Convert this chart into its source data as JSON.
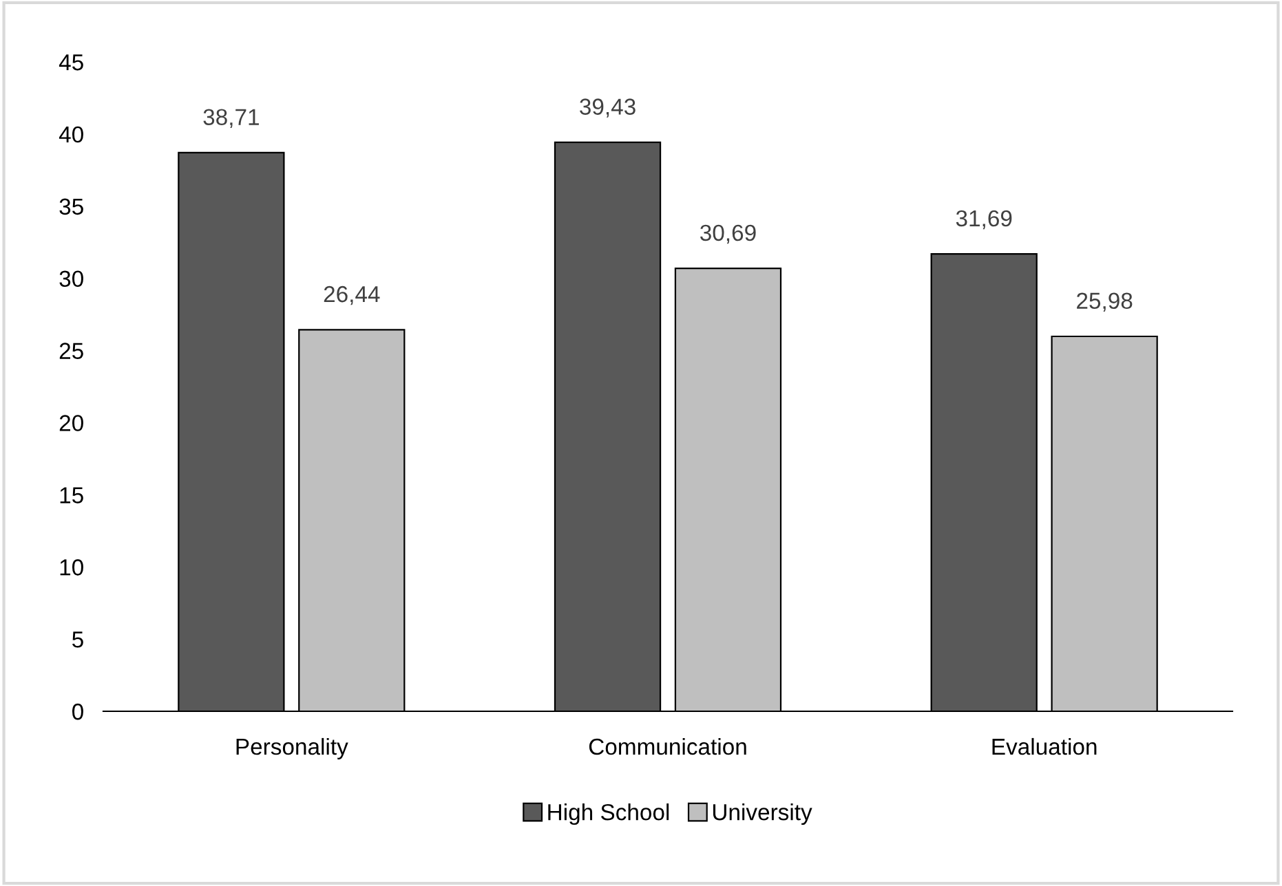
{
  "chart_data": {
    "type": "bar",
    "categories": [
      "Personality",
      "Communication",
      "Evaluation"
    ],
    "series": [
      {
        "name": "High School",
        "color": "#595959",
        "values": [
          38.71,
          39.43,
          31.69
        ],
        "value_labels": [
          "38,71",
          "39,43",
          "31,69"
        ]
      },
      {
        "name": "University",
        "color": "#bfbfbf",
        "values": [
          26.44,
          30.69,
          25.98
        ],
        "value_labels": [
          "26,44",
          "30,69",
          "25,98"
        ]
      }
    ],
    "ylim": [
      0,
      45
    ],
    "yticks": [
      0,
      5,
      10,
      15,
      20,
      25,
      30,
      35,
      40,
      45
    ],
    "grid": false,
    "legend": "bottom"
  }
}
